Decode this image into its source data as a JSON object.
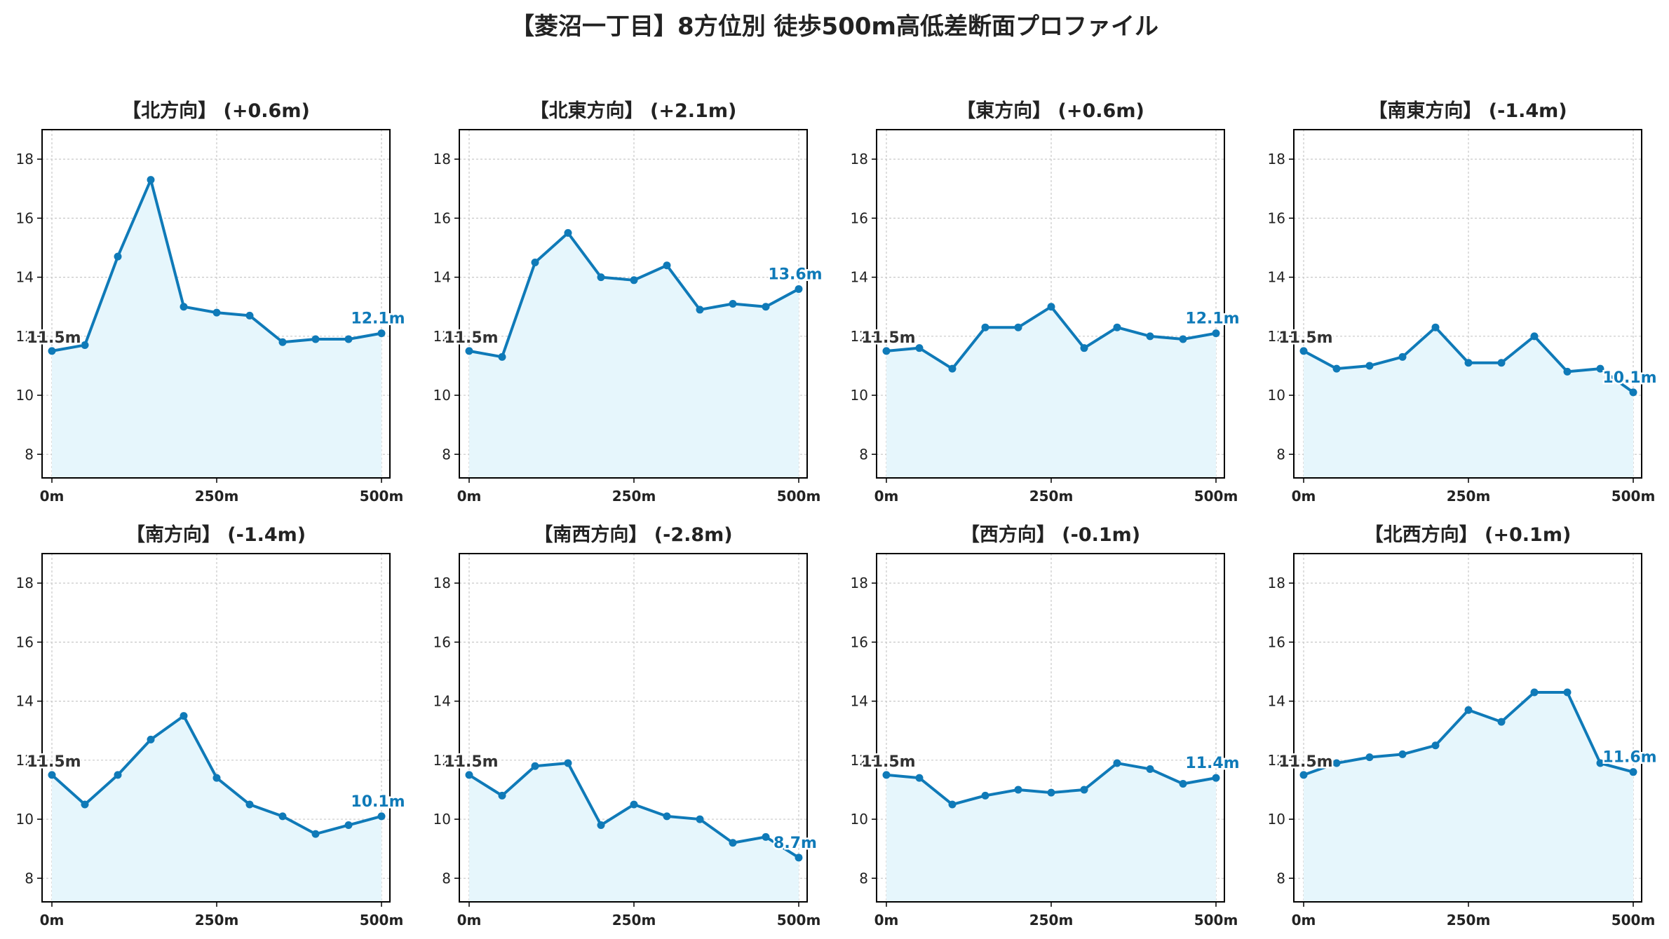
{
  "title": "【菱沼一丁目】8方位別 徒歩500m高低差断面プロファイル",
  "colors": {
    "line": "#0f7ab8",
    "fill": "#e6f6fc",
    "grid": "#c8c8c8",
    "start_label": "#333333",
    "end_label": "#0f7ab8"
  },
  "chart_data": [
    {
      "type": "area",
      "title": "【北方向】 (+0.6m)",
      "x": [
        0,
        50,
        100,
        150,
        200,
        250,
        300,
        350,
        400,
        450,
        500
      ],
      "y": [
        11.5,
        11.7,
        14.7,
        17.3,
        13.0,
        12.8,
        12.7,
        11.8,
        11.9,
        11.9,
        12.1
      ],
      "x_ticks": [
        "0m",
        "250m",
        "500m"
      ],
      "y_ticks": [
        8,
        10,
        12,
        14,
        16,
        18
      ],
      "ylim": [
        7.2,
        19.0
      ],
      "start_label": "11.5m",
      "end_label": "12.1m",
      "grid": true
    },
    {
      "type": "area",
      "title": "【北東方向】 (+2.1m)",
      "x": [
        0,
        50,
        100,
        150,
        200,
        250,
        300,
        350,
        400,
        450,
        500
      ],
      "y": [
        11.5,
        11.3,
        14.5,
        15.5,
        14.0,
        13.9,
        14.4,
        12.9,
        13.1,
        13.0,
        13.6
      ],
      "x_ticks": [
        "0m",
        "250m",
        "500m"
      ],
      "y_ticks": [
        8,
        10,
        12,
        14,
        16,
        18
      ],
      "ylim": [
        7.2,
        19.0
      ],
      "start_label": "11.5m",
      "end_label": "13.6m",
      "grid": true
    },
    {
      "type": "area",
      "title": "【東方向】 (+0.6m)",
      "x": [
        0,
        50,
        100,
        150,
        200,
        250,
        300,
        350,
        400,
        450,
        500
      ],
      "y": [
        11.5,
        11.6,
        10.9,
        12.3,
        12.3,
        13.0,
        11.6,
        12.3,
        12.0,
        11.9,
        12.1
      ],
      "x_ticks": [
        "0m",
        "250m",
        "500m"
      ],
      "y_ticks": [
        8,
        10,
        12,
        14,
        16,
        18
      ],
      "ylim": [
        7.2,
        19.0
      ],
      "start_label": "11.5m",
      "end_label": "12.1m",
      "grid": true
    },
    {
      "type": "area",
      "title": "【南東方向】 (-1.4m)",
      "x": [
        0,
        50,
        100,
        150,
        200,
        250,
        300,
        350,
        400,
        450,
        500
      ],
      "y": [
        11.5,
        10.9,
        11.0,
        11.3,
        12.3,
        11.1,
        11.1,
        12.0,
        10.8,
        10.9,
        10.1
      ],
      "x_ticks": [
        "0m",
        "250m",
        "500m"
      ],
      "y_ticks": [
        8,
        10,
        12,
        14,
        16,
        18
      ],
      "ylim": [
        7.2,
        19.0
      ],
      "start_label": "11.5m",
      "end_label": "10.1m",
      "grid": true
    },
    {
      "type": "area",
      "title": "【南方向】 (-1.4m)",
      "x": [
        0,
        50,
        100,
        150,
        200,
        250,
        300,
        350,
        400,
        450,
        500
      ],
      "y": [
        11.5,
        10.5,
        11.5,
        12.7,
        13.5,
        11.4,
        10.5,
        10.1,
        9.5,
        9.8,
        10.1
      ],
      "x_ticks": [
        "0m",
        "250m",
        "500m"
      ],
      "y_ticks": [
        8,
        10,
        12,
        14,
        16,
        18
      ],
      "ylim": [
        7.2,
        19.0
      ],
      "start_label": "11.5m",
      "end_label": "10.1m",
      "grid": true
    },
    {
      "type": "area",
      "title": "【南西方向】 (-2.8m)",
      "x": [
        0,
        50,
        100,
        150,
        200,
        250,
        300,
        350,
        400,
        450,
        500
      ],
      "y": [
        11.5,
        10.8,
        11.8,
        11.9,
        9.8,
        10.5,
        10.1,
        10.0,
        9.2,
        9.4,
        8.7
      ],
      "x_ticks": [
        "0m",
        "250m",
        "500m"
      ],
      "y_ticks": [
        8,
        10,
        12,
        14,
        16,
        18
      ],
      "ylim": [
        7.2,
        19.0
      ],
      "start_label": "11.5m",
      "end_label": "8.7m",
      "grid": true
    },
    {
      "type": "area",
      "title": "【西方向】 (-0.1m)",
      "x": [
        0,
        50,
        100,
        150,
        200,
        250,
        300,
        350,
        400,
        450,
        500
      ],
      "y": [
        11.5,
        11.4,
        10.5,
        10.8,
        11.0,
        10.9,
        11.0,
        11.9,
        11.7,
        11.2,
        11.4
      ],
      "x_ticks": [
        "0m",
        "250m",
        "500m"
      ],
      "y_ticks": [
        8,
        10,
        12,
        14,
        16,
        18
      ],
      "ylim": [
        7.2,
        19.0
      ],
      "start_label": "11.5m",
      "end_label": "11.4m",
      "grid": true
    },
    {
      "type": "area",
      "title": "【北西方向】 (+0.1m)",
      "x": [
        0,
        50,
        100,
        150,
        200,
        250,
        300,
        350,
        400,
        450,
        500
      ],
      "y": [
        11.5,
        11.9,
        12.1,
        12.2,
        12.5,
        13.7,
        13.3,
        14.3,
        14.3,
        11.9,
        11.6
      ],
      "x_ticks": [
        "0m",
        "250m",
        "500m"
      ],
      "y_ticks": [
        8,
        10,
        12,
        14,
        16,
        18
      ],
      "ylim": [
        7.2,
        19.0
      ],
      "start_label": "11.5m",
      "end_label": "11.6m",
      "grid": true
    }
  ]
}
